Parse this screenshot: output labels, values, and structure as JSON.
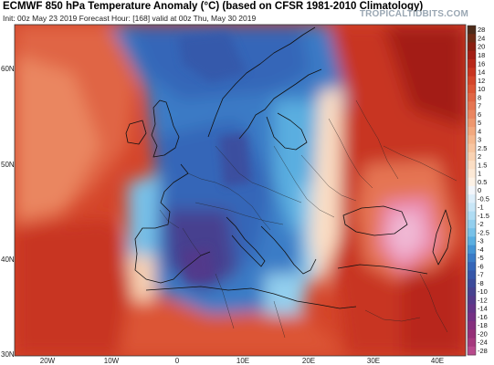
{
  "header": {
    "title": "ECMWF 850 hPa Temperature Anomaly (°C) (based on CFSR 1981-2010 Climatology)",
    "subtitle": "Init: 00z May 23 2019   Forecast Hour: [168]   valid at 00z Thu, May 30 2019",
    "brand": "TROPICALTIDBITS.COM"
  },
  "map": {
    "lat_labels": [
      "60N",
      "50N",
      "40N",
      "30N"
    ],
    "lon_labels": [
      "20W",
      "10W",
      "0",
      "10E",
      "20E",
      "30E",
      "40E"
    ]
  },
  "colorbar": {
    "labels": [
      "28",
      "24",
      "20",
      "18",
      "16",
      "14",
      "12",
      "10",
      "8",
      "7",
      "6",
      "5",
      "4",
      "3",
      "2.5",
      "2",
      "1.5",
      "1",
      "0.5",
      "0",
      "-0.5",
      "-1",
      "-1.5",
      "-2",
      "-2.5",
      "-3",
      "-4",
      "-5",
      "-6",
      "-7",
      "-8",
      "-10",
      "-12",
      "-14",
      "-16",
      "-18",
      "-20",
      "-24",
      "-28"
    ],
    "colors": [
      "#4d2b1a",
      "#6e2a14",
      "#8a1e10",
      "#a31e14",
      "#b8281a",
      "#c83420",
      "#d4452a",
      "#dc5535",
      "#e06544",
      "#e57552",
      "#ea8660",
      "#ee976e",
      "#f2a87e",
      "#f5b88f",
      "#f7c5a0",
      "#f9d2b2",
      "#fbdec4",
      "#fce9d6",
      "#fdf2e6",
      "#f3f6fb",
      "#ddeefa",
      "#c8e6f7",
      "#afdcf3",
      "#93cfee",
      "#78c1e8",
      "#5aaee0",
      "#4494d4",
      "#3a7bc6",
      "#3566b8",
      "#3656a8",
      "#3c4a9a",
      "#47418f",
      "#55398a",
      "#653387",
      "#753084",
      "#86307e",
      "#963078",
      "#a63a7e",
      "#b84a8c"
    ]
  }
}
